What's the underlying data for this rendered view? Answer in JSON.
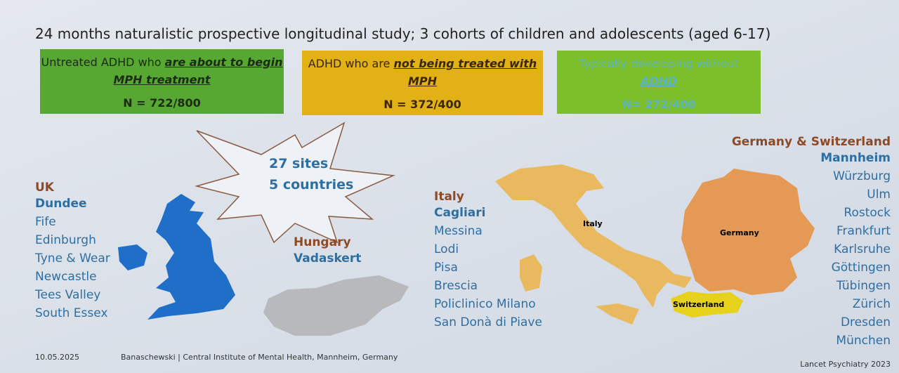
{
  "title": "24 months naturalistic prospective longitudinal study; 3 cohorts of children and adolescents (aged 6-17)",
  "cohorts": [
    {
      "label_plain": "Untreated ADHD who ",
      "label_emphasized": "are about to begin MPH treatment",
      "n": "N = 722/800"
    },
    {
      "label_plain": "ADHD who are ",
      "label_emphasized": "not being treated with  MPH",
      "n": "N = 372/400"
    },
    {
      "label_plain": "Typically developing without ",
      "label_emphasized": "ADHD",
      "n": "N= 272/400"
    }
  ],
  "summary": {
    "sites": "27 sites",
    "countries": "5 countries"
  },
  "regions": [
    {
      "name": "UK",
      "cities": [
        "Dundee",
        "Fife",
        "Edinburgh",
        "Tyne & Wear",
        "Newcastle",
        "Tees Valley",
        "South Essex"
      ]
    },
    {
      "name": "Hungary",
      "cities": [
        "Vadaskert"
      ]
    },
    {
      "name": "Italy",
      "cities": [
        "Cagliari",
        "Messina",
        "Lodi",
        "Pisa",
        "Brescia",
        "Policlinico Milano",
        "San Donà di Piave"
      ]
    },
    {
      "name": "Germany & Switzerland",
      "cities": [
        "Mannheim",
        "Würzburg",
        "Ulm",
        "Rostock",
        "Frankfurt",
        "Karlsruhe",
        "Göttingen",
        "Tübingen",
        "Zürich",
        "Dresden",
        "München"
      ]
    }
  ],
  "map_labels": {
    "italy": "Italy",
    "germany": "Germany",
    "switzerland": "Switzerland"
  },
  "footer": {
    "date": "10.05.2025",
    "author": "Banaschewski | Central Institute of Mental Health, Mannheim, Germany",
    "source": "Lancet Psychiatry 2023"
  }
}
